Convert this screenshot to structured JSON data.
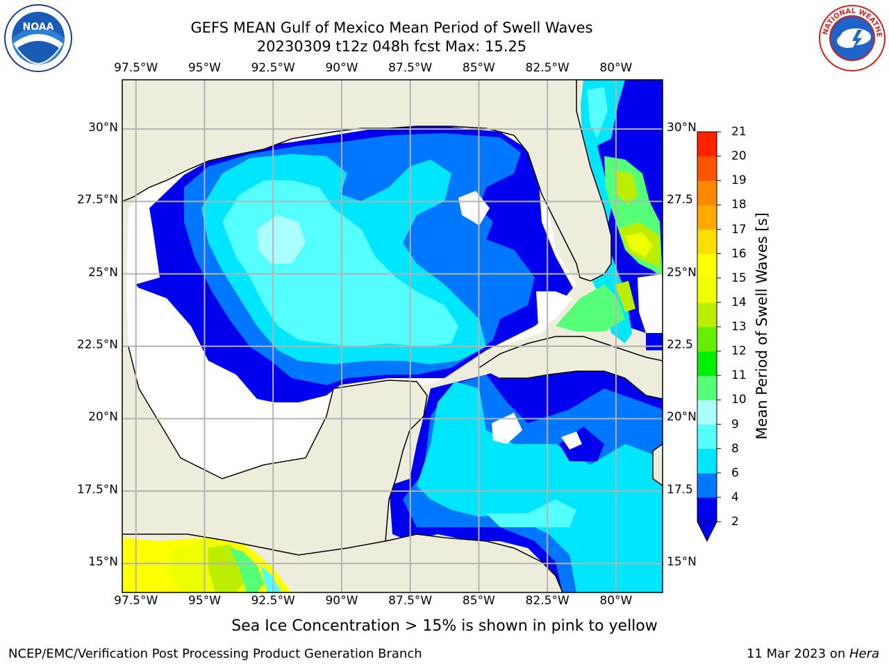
{
  "header": {
    "title": "GEFS MEAN Gulf of Mexico Mean Period of Swell Waves",
    "subtitle": "20230309 t12z 048h fcst   Max: 15.25"
  },
  "logos": {
    "noaa_text": "NOAA",
    "noaa_ring_text": "NATIONAL OCEANIC AND ATMOSPHERIC ADMINISTRATION • U.S. DEPARTMENT OF COMMERCE",
    "nws_ring_text": "NATIONAL WEATHER SERVICE"
  },
  "map": {
    "lon_labels": [
      "97.5°W",
      "95°W",
      "92.5°W",
      "90°W",
      "87.5°W",
      "85°W",
      "82.5°W",
      "80°W"
    ],
    "lat_labels_left": [
      "30°N",
      "27.5°N",
      "25°N",
      "22.5°N",
      "20°N",
      "17.5°N",
      "15°N"
    ],
    "lat_labels_right": [
      "30°N",
      "27.5",
      "25°N",
      "22.5",
      "20°N",
      "17.5",
      "15°N"
    ],
    "lon_range": [
      -98,
      -78.3
    ],
    "lat_range": [
      14,
      31.7
    ],
    "colors": {
      "land": "#eeeddc",
      "no_data": "#ffffff",
      "grid": "#b3b3b3",
      "coast": "#000000"
    }
  },
  "colorbar": {
    "title": "Mean Period of Swell Waves [s]",
    "ticks": [
      "2",
      "4",
      "6",
      "8",
      "9",
      "10",
      "11",
      "12",
      "13",
      "14",
      "15",
      "16",
      "17",
      "18",
      "19",
      "20",
      "21"
    ],
    "colors": [
      "#0000ee",
      "#0077ff",
      "#00e6ff",
      "#55ffff",
      "#aaffff",
      "#55ff77",
      "#00ee00",
      "#66ee00",
      "#bbee00",
      "#eeff00",
      "#ffff00",
      "#ffdd00",
      "#ffaa00",
      "#ff8800",
      "#ff5500",
      "#ff2200",
      "#ff0000"
    ],
    "under_color": "#0000ee"
  },
  "note": "Sea Ice Concentration > 15% is shown in pink to yellow",
  "footer": {
    "left": "NCEP/EMC/Verification Post Processing Product Generation Branch",
    "right_date": "11 Mar 2023 on ",
    "right_host": "Hera"
  }
}
